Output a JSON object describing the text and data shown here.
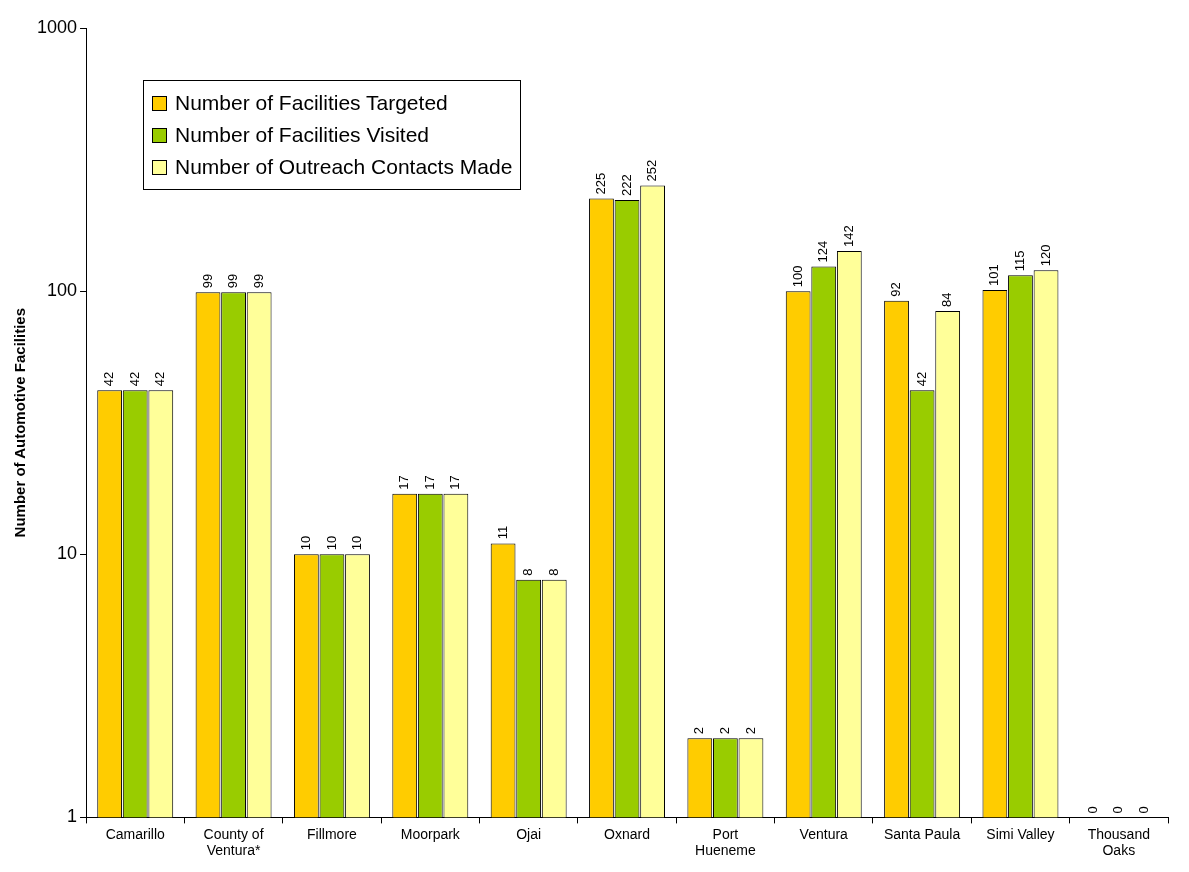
{
  "chart_data": {
    "type": "bar",
    "ylabel": "Number of Automotive Facilities",
    "categories": [
      "Camarillo",
      "County of Ventura*",
      "Fillmore",
      "Moorpark",
      "Ojai",
      "Oxnard",
      "Port Hueneme",
      "Ventura",
      "Santa Paula",
      "Simi Valley",
      "Thousand Oaks"
    ],
    "series": [
      {
        "name": "Number of Facilities Targeted",
        "color": "#ffcc00",
        "values": [
          42,
          99,
          10,
          17,
          11,
          225,
          2,
          100,
          92,
          101,
          null
        ],
        "value_labels": [
          "42",
          "99",
          "10",
          "17",
          "11",
          "225",
          "2",
          "100",
          "92",
          "101",
          "0"
        ]
      },
      {
        "name": "Number of Facilities Visited",
        "color": "#99cc00",
        "values": [
          42,
          99,
          10,
          17,
          8,
          222,
          2,
          124,
          42,
          115,
          null
        ],
        "value_labels": [
          "42",
          "99",
          "10",
          "17",
          "8",
          "222",
          "2",
          "124",
          "42",
          "115",
          "0"
        ]
      },
      {
        "name": "Number of Outreach Contacts Made",
        "color": "#ffff99",
        "values": [
          42,
          99,
          10,
          17,
          8,
          252,
          2,
          142,
          84,
          120,
          null
        ],
        "value_labels": [
          "42",
          "99",
          "10",
          "17",
          "8",
          "252",
          "2",
          "142",
          "84",
          "120",
          "0"
        ]
      }
    ],
    "log": true,
    "ylim": [
      1,
      1000
    ],
    "yticks": [
      1,
      10,
      100,
      1000
    ],
    "grid": false,
    "legend": "top left"
  }
}
